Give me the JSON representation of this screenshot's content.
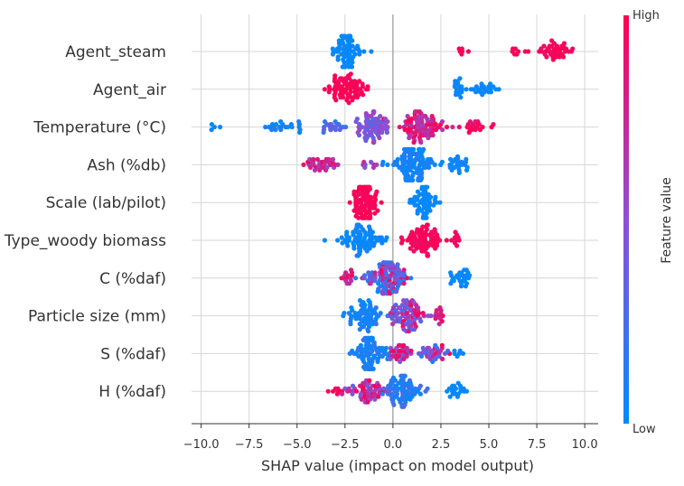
{
  "chart_data": {
    "type": "scatter",
    "subtype": "shap-beeswarm-summary",
    "xlabel": "SHAP value (impact on model output)",
    "xlim": [
      -10.5,
      10.7
    ],
    "x_ticks": [
      -10.0,
      -7.5,
      -5.0,
      -2.5,
      0.0,
      2.5,
      5.0,
      7.5,
      10.0
    ],
    "x_tick_labels": [
      "−10.0",
      "−7.5",
      "−5.0",
      "−2.5",
      "0.0",
      "2.5",
      "5.0",
      "7.5",
      "10.0"
    ],
    "grid": true,
    "zero_line": true,
    "colorbar": {
      "label": "Feature value",
      "high_label": "High",
      "low_label": "Low",
      "low_color": "#008bfb",
      "mid_color": "#8f4fd6",
      "high_color": "#ff0052",
      "placement": "right"
    },
    "features": [
      {
        "name": "Agent_steam",
        "clusters": [
          {
            "center": -2.4,
            "spread": 0.9,
            "count": 70,
            "fv": [
              0.0,
              0.05
            ]
          },
          {
            "center": 3.7,
            "spread": 0.4,
            "count": 6,
            "fv": [
              0.95,
              1.0
            ]
          },
          {
            "center": 6.6,
            "spread": 0.6,
            "count": 8,
            "fv": [
              0.95,
              1.0
            ]
          },
          {
            "center": 8.5,
            "spread": 0.9,
            "count": 40,
            "fv": [
              0.92,
              1.0
            ]
          }
        ]
      },
      {
        "name": "Agent_air",
        "clusters": [
          {
            "center": -2.4,
            "spread": 1.0,
            "count": 75,
            "fv": [
              0.95,
              1.0
            ]
          },
          {
            "center": 3.4,
            "spread": 0.5,
            "count": 18,
            "fv": [
              0.0,
              0.06
            ]
          },
          {
            "center": 4.8,
            "spread": 0.8,
            "count": 22,
            "fv": [
              0.0,
              0.06
            ]
          }
        ]
      },
      {
        "name": "Temperature (°C)",
        "clusters": [
          {
            "center": -9.3,
            "spread": 0.6,
            "count": 4,
            "fv": [
              0.0,
              0.05
            ]
          },
          {
            "center": -5.5,
            "spread": 1.3,
            "count": 22,
            "fv": [
              0.0,
              0.15
            ]
          },
          {
            "center": -3.2,
            "spread": 0.8,
            "count": 20,
            "fv": [
              0.15,
              0.4
            ]
          },
          {
            "center": -1.2,
            "spread": 1.0,
            "count": 70,
            "fv": [
              0.3,
              0.6
            ]
          },
          {
            "center": 1.5,
            "spread": 1.2,
            "count": 90,
            "fv": [
              0.6,
              1.0
            ]
          },
          {
            "center": 4.3,
            "spread": 0.8,
            "count": 20,
            "fv": [
              0.85,
              1.0
            ]
          }
        ]
      },
      {
        "name": "Ash (%db)",
        "clusters": [
          {
            "center": -3.6,
            "spread": 1.0,
            "count": 35,
            "fv": [
              0.55,
              1.0
            ]
          },
          {
            "center": -1.3,
            "spread": 0.6,
            "count": 8,
            "fv": [
              0.4,
              0.8
            ]
          },
          {
            "center": 0.9,
            "spread": 1.3,
            "count": 110,
            "fv": [
              0.0,
              0.15
            ]
          },
          {
            "center": 3.4,
            "spread": 0.8,
            "count": 25,
            "fv": [
              0.0,
              0.1
            ]
          }
        ]
      },
      {
        "name": "Scale (lab/pilot)",
        "clusters": [
          {
            "center": -1.5,
            "spread": 0.8,
            "count": 90,
            "fv": [
              0.95,
              1.0
            ]
          },
          {
            "center": 1.6,
            "spread": 0.9,
            "count": 60,
            "fv": [
              0.0,
              0.05
            ]
          }
        ]
      },
      {
        "name": "Type_woody biomass",
        "clusters": [
          {
            "center": -1.8,
            "spread": 1.3,
            "count": 80,
            "fv": [
              0.0,
              0.08
            ]
          },
          {
            "center": 1.5,
            "spread": 1.1,
            "count": 75,
            "fv": [
              0.92,
              1.0
            ]
          },
          {
            "center": 3.3,
            "spread": 0.3,
            "count": 8,
            "fv": [
              0.92,
              1.0
            ]
          }
        ]
      },
      {
        "name": "C (%daf)",
        "clusters": [
          {
            "center": -2.3,
            "spread": 0.5,
            "count": 14,
            "fv": [
              0.6,
              1.0
            ]
          },
          {
            "center": -0.3,
            "spread": 1.1,
            "count": 120,
            "fv": [
              0.0,
              1.0
            ]
          },
          {
            "center": 3.6,
            "spread": 0.7,
            "count": 28,
            "fv": [
              0.0,
              0.05
            ]
          }
        ]
      },
      {
        "name": "Particle size (mm)",
        "clusters": [
          {
            "center": -1.4,
            "spread": 1.0,
            "count": 65,
            "fv": [
              0.0,
              0.15
            ]
          },
          {
            "center": 0.8,
            "spread": 1.1,
            "count": 85,
            "fv": [
              0.2,
              1.0
            ]
          },
          {
            "center": 2.4,
            "spread": 0.5,
            "count": 12,
            "fv": [
              0.7,
              1.0
            ]
          }
        ]
      },
      {
        "name": "S (%daf)",
        "clusters": [
          {
            "center": -1.1,
            "spread": 1.1,
            "count": 90,
            "fv": [
              0.0,
              0.2
            ]
          },
          {
            "center": 0.4,
            "spread": 0.8,
            "count": 30,
            "fv": [
              0.3,
              1.0
            ]
          },
          {
            "center": 2.1,
            "spread": 0.9,
            "count": 35,
            "fv": [
              0.1,
              1.0
            ]
          },
          {
            "center": 3.3,
            "spread": 0.3,
            "count": 6,
            "fv": [
              0.0,
              0.05
            ]
          }
        ]
      },
      {
        "name": "H (%daf)",
        "clusters": [
          {
            "center": -3.0,
            "spread": 0.4,
            "count": 8,
            "fv": [
              0.92,
              1.0
            ]
          },
          {
            "center": -1.3,
            "spread": 1.0,
            "count": 55,
            "fv": [
              0.3,
              1.0
            ]
          },
          {
            "center": 0.5,
            "spread": 1.1,
            "count": 85,
            "fv": [
              0.0,
              0.3
            ]
          },
          {
            "center": 3.3,
            "spread": 0.6,
            "count": 20,
            "fv": [
              0.0,
              0.05
            ]
          }
        ]
      }
    ]
  }
}
